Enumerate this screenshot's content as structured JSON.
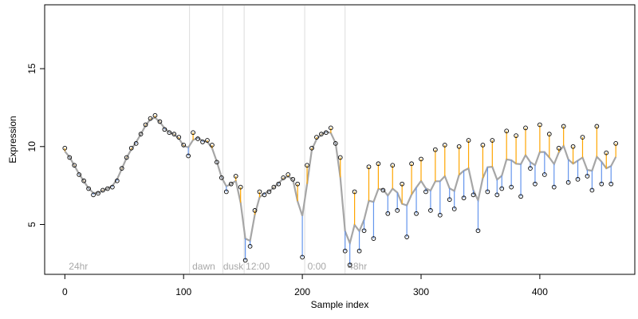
{
  "chart_data": {
    "type": "scatter",
    "title": "",
    "xlabel": "Sample index",
    "ylabel": "Expression",
    "xlim": [
      -17,
      480
    ],
    "ylim": [
      1.8,
      19.1
    ],
    "xticks": [
      0,
      100,
      200,
      300,
      400
    ],
    "yticks": [
      5,
      10,
      15
    ],
    "grid": false,
    "legend": "none",
    "colors": {
      "trend_line": "#a6a6a6",
      "residual_up": "#ffa500",
      "residual_down": "#6495ed",
      "point_edge": "#000000",
      "marker_line": "#dcdcdc",
      "annotation": "#a8a8a8"
    },
    "annotations": [
      {
        "label": "24hr",
        "x": 2
      },
      {
        "label": "dawn",
        "x": 106
      },
      {
        "label": "dusk",
        "x": 132
      },
      {
        "label": "12:00",
        "x": 151
      },
      {
        "label": "0:00",
        "x": 203
      },
      {
        "label": "48hr",
        "x": 237
      }
    ],
    "vertical_markers": [
      105,
      133,
      151,
      202,
      236
    ],
    "series": [
      {
        "name": "",
        "style": "open circles, residual segments to fitted trend",
        "x": [
          0,
          4,
          8,
          12,
          16,
          20,
          24,
          28,
          32,
          36,
          40,
          44,
          48,
          52,
          56,
          60,
          64,
          68,
          72,
          76,
          80,
          84,
          88,
          92,
          96,
          100,
          104,
          108,
          112,
          116,
          120,
          124,
          128,
          132,
          136,
          140,
          144,
          148,
          152,
          156,
          160,
          164,
          168,
          172,
          176,
          180,
          184,
          188,
          192,
          196,
          200,
          204,
          208,
          212,
          216,
          220,
          224,
          228,
          232,
          236,
          240,
          244,
          248,
          252,
          256,
          260,
          264,
          268,
          272,
          276,
          280,
          284,
          288,
          292,
          296,
          300,
          304,
          308,
          312,
          316,
          320,
          324,
          328,
          332,
          336,
          340,
          344,
          348,
          352,
          356,
          360,
          364,
          368,
          372,
          376,
          380,
          384,
          388,
          392,
          396,
          400,
          404,
          408,
          412,
          416,
          420,
          424,
          428,
          432,
          436,
          440,
          444,
          448,
          452,
          456,
          460,
          464
        ],
        "y": [
          9.9,
          9.3,
          8.8,
          8.2,
          7.8,
          7.3,
          6.9,
          7.0,
          7.2,
          7.3,
          7.4,
          7.8,
          8.6,
          9.3,
          9.9,
          10.2,
          10.8,
          11.4,
          11.8,
          12.0,
          11.6,
          11.1,
          10.9,
          10.8,
          10.6,
          10.1,
          9.4,
          10.9,
          10.5,
          10.3,
          10.4,
          10.1,
          9.0,
          8.0,
          7.1,
          7.6,
          8.1,
          7.4,
          2.7,
          3.6,
          5.9,
          7.1,
          6.9,
          7.1,
          7.4,
          7.6,
          8.0,
          8.2,
          7.9,
          7.6,
          2.9,
          8.8,
          9.9,
          10.6,
          10.8,
          10.9,
          11.2,
          10.2,
          9.3,
          3.3,
          2.4,
          7.1,
          3.3,
          4.6,
          8.7,
          4.1,
          8.9,
          7.2,
          5.7,
          8.8,
          5.9,
          7.6,
          4.2,
          8.9,
          5.7,
          9.2,
          7.1,
          5.9,
          9.8,
          5.6,
          10.1,
          6.6,
          6.0,
          10.0,
          6.7,
          10.4,
          6.9,
          4.6,
          10.1,
          7.1,
          10.4,
          6.9,
          7.3,
          11.0,
          7.4,
          10.7,
          6.8,
          11.2,
          8.6,
          7.6,
          11.4,
          8.2,
          10.8,
          7.4,
          9.9,
          11.3,
          7.7,
          10.0,
          7.9,
          10.6,
          8.1,
          7.2,
          11.3,
          7.6,
          9.6,
          7.6,
          10.2
        ]
      }
    ]
  }
}
